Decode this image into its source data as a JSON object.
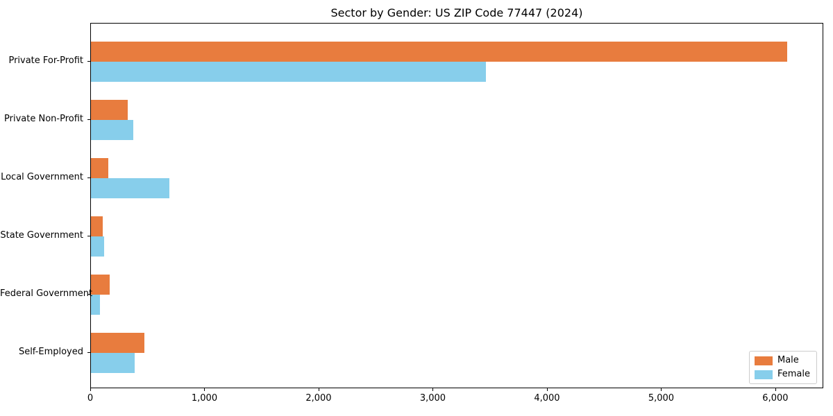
{
  "figure": {
    "background_color": "#ffffff",
    "spine_color": "#000000"
  },
  "chart_data": {
    "type": "bar",
    "orientation": "horizontal",
    "title": "Sector by Gender: US ZIP Code 77447 (2024)",
    "categories": [
      "Private For-Profit",
      "Private Non-Profit",
      "Local Government",
      "State Government",
      "Federal Government",
      "Self-Employed"
    ],
    "series": [
      {
        "name": "Male",
        "color": "#E87C3E",
        "values": [
          6100,
          325,
          150,
          105,
          165,
          470
        ]
      },
      {
        "name": "Female",
        "color": "#87CEEB",
        "values": [
          3460,
          370,
          685,
          115,
          80,
          380
        ]
      }
    ],
    "xlim": [
      0,
      6420
    ],
    "xticks": [
      0,
      1000,
      2000,
      3000,
      4000,
      5000,
      6000
    ],
    "xtick_labels": [
      "0",
      "1,000",
      "2,000",
      "3,000",
      "4,000",
      "5,000",
      "6,000"
    ],
    "xlabel": "",
    "ylabel": "",
    "grid": false,
    "legend": {
      "position": "lower right"
    }
  }
}
